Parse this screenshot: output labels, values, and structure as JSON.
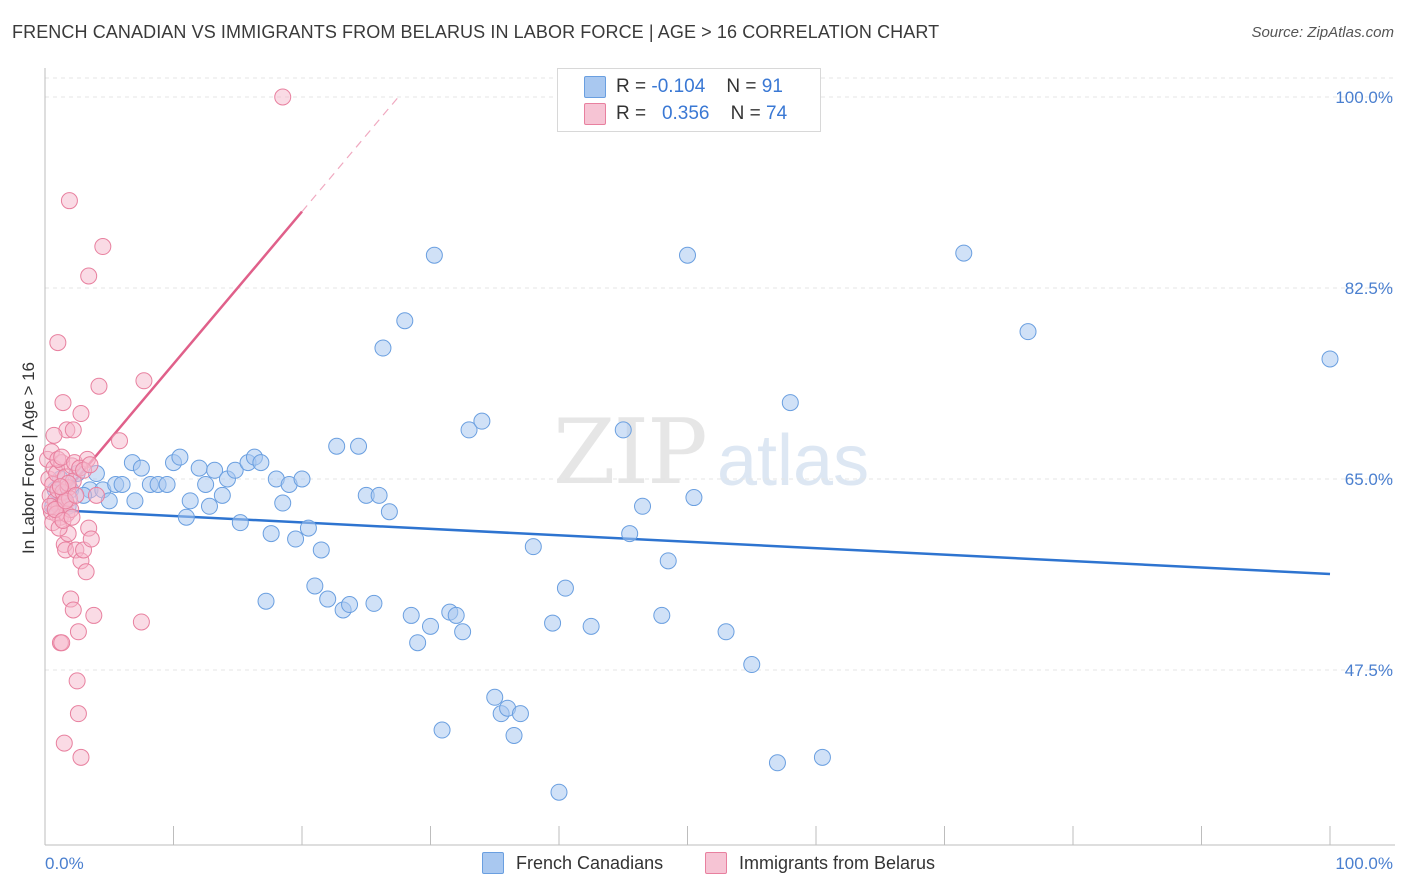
{
  "title": "FRENCH CANADIAN VS IMMIGRANTS FROM BELARUS IN LABOR FORCE | AGE > 16 CORRELATION CHART",
  "source": "Source: ZipAtlas.com",
  "watermark": {
    "zip": "ZIP",
    "atlas": "atlas"
  },
  "legend": {
    "row1": {
      "r_label": "R =",
      "r_value": "-0.104",
      "n_label": "N =",
      "n_value": "91"
    },
    "row2": {
      "r_label": "R =",
      "r_value": "0.356",
      "n_label": "N =",
      "n_value": "74"
    }
  },
  "bottom_legend": {
    "series1": "French Canadians",
    "series2": "Immigrants from Belarus"
  },
  "colors": {
    "blue": "#a9c8f0",
    "blue_edge": "#6a9fe0",
    "blue_line": "#2e74d0",
    "pink": "#f6b8cc",
    "pink_edge": "#e8809f",
    "pink_line": "#e0608a",
    "tick_text": "#4a7fcf"
  },
  "chart_data": {
    "type": "scatter",
    "title": "FRENCH CANADIAN VS IMMIGRANTS FROM BELARUS IN LABOR FORCE | AGE > 16 CORRELATION CHART",
    "xlabel": "",
    "ylabel": "In Labor Force | Age > 16",
    "xlim": [
      0,
      100
    ],
    "ylim": [
      30,
      102
    ],
    "x_tick_labels": [
      "0.0%",
      "100.0%"
    ],
    "y_ticks": [
      47.5,
      65.0,
      82.5,
      100.0
    ],
    "y_tick_labels": [
      "47.5%",
      "65.0%",
      "82.5%",
      "100.0%"
    ],
    "series": [
      {
        "name": "French Canadians",
        "R": -0.104,
        "N": 91,
        "trend": {
          "x": [
            0,
            100
          ],
          "y": [
            62.2,
            56.3
          ]
        },
        "points": [
          [
            0.6,
            62.5
          ],
          [
            0.8,
            64.0
          ],
          [
            1.2,
            65.0
          ],
          [
            1.5,
            63.0
          ],
          [
            2.0,
            64.0
          ],
          [
            3.5,
            64.0
          ],
          [
            4.0,
            65.5
          ],
          [
            4.5,
            64.0
          ],
          [
            5.0,
            63.0
          ],
          [
            5.5,
            64.5
          ],
          [
            6.0,
            64.5
          ],
          [
            6.8,
            66.5
          ],
          [
            7.5,
            66.0
          ],
          [
            8.2,
            64.5
          ],
          [
            8.8,
            64.5
          ],
          [
            9.5,
            64.5
          ],
          [
            10.0,
            66.5
          ],
          [
            10.5,
            67.0
          ],
          [
            11.0,
            61.5
          ],
          [
            11.3,
            63.0
          ],
          [
            12.0,
            66.0
          ],
          [
            12.5,
            64.5
          ],
          [
            12.8,
            62.5
          ],
          [
            13.2,
            65.8
          ],
          [
            13.8,
            63.5
          ],
          [
            14.2,
            65.0
          ],
          [
            14.8,
            65.8
          ],
          [
            15.2,
            61.0
          ],
          [
            15.8,
            66.5
          ],
          [
            16.3,
            67.0
          ],
          [
            16.8,
            66.5
          ],
          [
            17.2,
            53.8
          ],
          [
            17.6,
            60.0
          ],
          [
            18.0,
            65.0
          ],
          [
            18.5,
            62.8
          ],
          [
            19.0,
            64.5
          ],
          [
            19.5,
            59.5
          ],
          [
            20.0,
            65.0
          ],
          [
            20.5,
            60.5
          ],
          [
            21.0,
            55.2
          ],
          [
            21.5,
            58.5
          ],
          [
            22.0,
            54.0
          ],
          [
            22.7,
            68.0
          ],
          [
            23.2,
            53.0
          ],
          [
            23.7,
            53.5
          ],
          [
            24.4,
            68.0
          ],
          [
            25.0,
            63.5
          ],
          [
            25.6,
            53.6
          ],
          [
            26.0,
            63.5
          ],
          [
            26.3,
            77.0
          ],
          [
            26.8,
            62.0
          ],
          [
            28.0,
            79.5
          ],
          [
            28.5,
            52.5
          ],
          [
            29.0,
            50.0
          ],
          [
            30.0,
            51.5
          ],
          [
            30.3,
            85.5
          ],
          [
            30.9,
            42.0
          ],
          [
            31.5,
            52.8
          ],
          [
            32.0,
            52.5
          ],
          [
            32.5,
            51.0
          ],
          [
            33.0,
            69.5
          ],
          [
            34.0,
            70.3
          ],
          [
            35.0,
            45.0
          ],
          [
            35.5,
            43.5
          ],
          [
            36.0,
            44.0
          ],
          [
            36.5,
            41.5
          ],
          [
            37.0,
            43.5
          ],
          [
            38.0,
            58.8
          ],
          [
            39.5,
            51.8
          ],
          [
            40.0,
            36.3
          ],
          [
            40.5,
            55.0
          ],
          [
            42.5,
            51.5
          ],
          [
            45.0,
            69.5
          ],
          [
            45.5,
            60.0
          ],
          [
            46.5,
            62.5
          ],
          [
            48.0,
            52.5
          ],
          [
            48.5,
            57.5
          ],
          [
            50.0,
            85.5
          ],
          [
            50.5,
            63.3
          ],
          [
            53.0,
            51.0
          ],
          [
            55.0,
            48.0
          ],
          [
            57.0,
            39.0
          ],
          [
            58.0,
            72.0
          ],
          [
            60.5,
            39.5
          ],
          [
            71.5,
            85.7
          ],
          [
            76.5,
            78.5
          ],
          [
            100.0,
            76.0
          ],
          [
            3.0,
            63.5
          ],
          [
            2.5,
            65.5
          ],
          [
            1.8,
            62.5
          ],
          [
            7.0,
            63.0
          ]
        ]
      },
      {
        "name": "Immigrants from Belarus",
        "R": 0.356,
        "N": 74,
        "trend": {
          "x": [
            0.3,
            20.0
          ],
          "y": [
            62.0,
            89.5
          ]
        },
        "trend_extrapolated": {
          "x": [
            20.0,
            27.5
          ],
          "y": [
            89.5,
            100.0
          ]
        },
        "points": [
          [
            0.2,
            66.8
          ],
          [
            0.3,
            65.0
          ],
          [
            0.4,
            63.5
          ],
          [
            0.5,
            62.0
          ],
          [
            0.5,
            67.5
          ],
          [
            0.6,
            64.5
          ],
          [
            0.7,
            66.0
          ],
          [
            0.8,
            63.0
          ],
          [
            0.9,
            65.5
          ],
          [
            1.0,
            64.0
          ],
          [
            1.1,
            62.5
          ],
          [
            1.2,
            61.5
          ],
          [
            1.3,
            66.5
          ],
          [
            1.4,
            63.8
          ],
          [
            1.5,
            62.8
          ],
          [
            1.6,
            65.2
          ],
          [
            1.7,
            61.8
          ],
          [
            1.8,
            64.2
          ],
          [
            1.9,
            63.2
          ],
          [
            2.0,
            62.2
          ],
          [
            2.1,
            66.2
          ],
          [
            2.2,
            64.8
          ],
          [
            0.4,
            62.5
          ],
          [
            0.9,
            61.8
          ],
          [
            1.0,
            66.8
          ],
          [
            1.3,
            67.0
          ],
          [
            1.5,
            59.0
          ],
          [
            1.6,
            58.5
          ],
          [
            1.8,
            60.0
          ],
          [
            2.0,
            54.0
          ],
          [
            2.2,
            53.0
          ],
          [
            2.4,
            58.5
          ],
          [
            2.6,
            51.0
          ],
          [
            2.8,
            57.5
          ],
          [
            3.0,
            58.5
          ],
          [
            3.2,
            56.5
          ],
          [
            3.4,
            60.5
          ],
          [
            3.6,
            59.5
          ],
          [
            3.8,
            52.5
          ],
          [
            1.2,
            50.0
          ],
          [
            1.3,
            50.0
          ],
          [
            2.5,
            46.5
          ],
          [
            2.6,
            43.5
          ],
          [
            1.5,
            40.8
          ],
          [
            2.8,
            39.5
          ],
          [
            1.0,
            77.5
          ],
          [
            1.4,
            72.0
          ],
          [
            1.7,
            69.5
          ],
          [
            2.2,
            69.5
          ],
          [
            2.3,
            66.5
          ],
          [
            2.8,
            71.0
          ],
          [
            3.3,
            66.8
          ],
          [
            4.2,
            73.5
          ],
          [
            5.8,
            68.5
          ],
          [
            7.5,
            51.9
          ],
          [
            7.7,
            74.0
          ],
          [
            1.9,
            90.5
          ],
          [
            3.4,
            83.6
          ],
          [
            4.5,
            86.3
          ],
          [
            18.5,
            100.0
          ],
          [
            0.6,
            61.0
          ],
          [
            0.8,
            62.2
          ],
          [
            1.1,
            60.5
          ],
          [
            1.4,
            61.2
          ],
          [
            1.6,
            63.0
          ],
          [
            1.8,
            64.6
          ],
          [
            2.1,
            61.5
          ],
          [
            2.4,
            63.5
          ],
          [
            2.7,
            66.0
          ],
          [
            3.0,
            65.8
          ],
          [
            3.5,
            66.3
          ],
          [
            4.0,
            63.5
          ],
          [
            0.7,
            69.0
          ],
          [
            1.2,
            64.3
          ]
        ]
      }
    ]
  }
}
